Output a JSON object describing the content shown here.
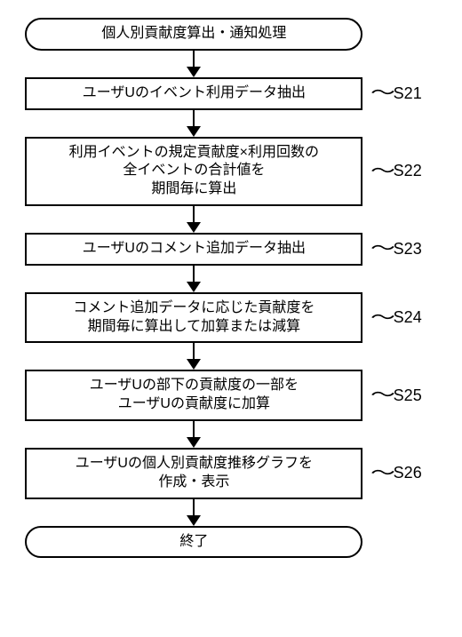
{
  "flow": {
    "start": {
      "text": "個人別貢献度算出・通知処理"
    },
    "steps": [
      {
        "text": "ユーザUのイベント利用データ抽出",
        "label": "S21"
      },
      {
        "text": "利用イベントの規定貢献度×利用回数の\n全イベントの合計値を\n期間毎に算出",
        "label": "S22"
      },
      {
        "text": "ユーザUのコメント追加データ抽出",
        "label": "S23"
      },
      {
        "text": "コメント追加データに応じた貢献度を\n期間毎に算出して加算または減算",
        "label": "S24"
      },
      {
        "text": "ユーザUの部下の貢献度の一部を\nユーザUの貢献度に加算",
        "label": "S25"
      },
      {
        "text": "ユーザUの個人別貢献度推移グラフを\n作成・表示",
        "label": "S26"
      }
    ],
    "end": {
      "text": "終了"
    }
  },
  "style": {
    "border_color": "#000000",
    "background": "#ffffff",
    "font_size_node": 16,
    "font_size_label": 18,
    "arrow_shaft_height": 18,
    "node_width_terminator": 380,
    "node_width_process": 380
  }
}
